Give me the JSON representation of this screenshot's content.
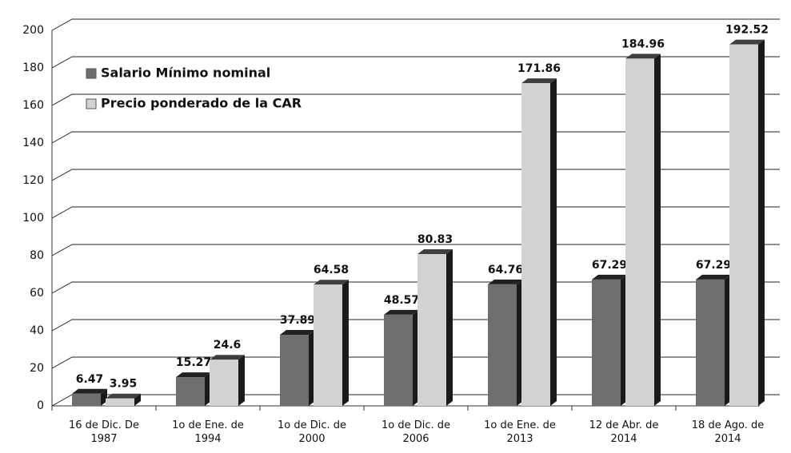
{
  "chart_data": {
    "type": "bar",
    "categories": [
      "16 de Dic. De\n1987",
      "1o de Ene. de\n1994",
      "1o de Dic. de\n2000",
      "1o de Dic. de\n2006",
      "1o de Ene. de\n2013",
      "12 de Abr. de\n2014",
      "18 de Ago. de\n2014"
    ],
    "series": [
      {
        "name": "Salario Mínimo nominal",
        "color": "#6e6e6e",
        "values": [
          6.47,
          15.27,
          37.89,
          48.57,
          64.76,
          67.29,
          67.29
        ]
      },
      {
        "name": "Precio ponderado de la CAR",
        "color": "#d2d2d2",
        "values": [
          3.95,
          24.6,
          64.58,
          80.83,
          171.86,
          184.96,
          192.52
        ]
      }
    ],
    "ylim": [
      0,
      200
    ],
    "yticks": [
      0,
      20,
      40,
      60,
      80,
      100,
      120,
      140,
      160,
      180,
      200
    ],
    "grid": true
  }
}
